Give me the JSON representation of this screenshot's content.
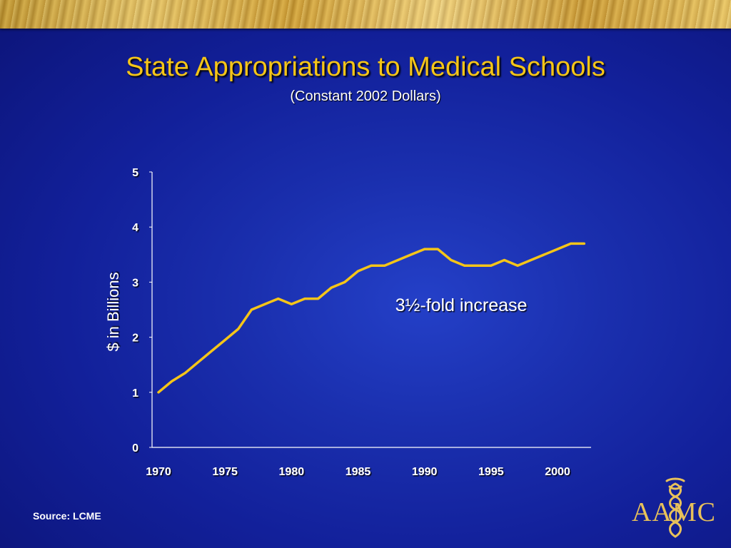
{
  "slide": {
    "title": "State Appropriations to Medical Schools",
    "subtitle": "(Constant 2002 Dollars)",
    "source": "Source: LCME",
    "logo_text": "AAMC"
  },
  "colors": {
    "background": "#1a2fae",
    "title": "#f5c518",
    "series_line": "#f5c518",
    "axis": "#ffffff",
    "band": "#d4b256"
  },
  "chart_data": {
    "type": "line",
    "ylabel": "$ in Billions",
    "xlabel": "",
    "ylim": [
      0,
      5
    ],
    "xlim": [
      1970,
      2002
    ],
    "yticks": [
      0,
      1,
      2,
      3,
      4,
      5
    ],
    "xticks": [
      1970,
      1975,
      1980,
      1985,
      1990,
      1995,
      2000
    ],
    "grid": false,
    "annotation": "3½-fold increase",
    "series": [
      {
        "x": [
          1970,
          1971,
          1972,
          1973,
          1974,
          1975,
          1976,
          1977,
          1978,
          1979,
          1980,
          1981,
          1982,
          1983,
          1984,
          1985,
          1986,
          1987,
          1988,
          1989,
          1990,
          1991,
          1992,
          1993,
          1994,
          1995,
          1996,
          1997,
          1998,
          1999,
          2000,
          2001,
          2002
        ],
        "values": [
          1.0,
          1.2,
          1.35,
          1.55,
          1.75,
          1.95,
          2.15,
          2.5,
          2.6,
          2.7,
          2.6,
          2.7,
          2.7,
          2.9,
          3.0,
          3.2,
          3.3,
          3.3,
          3.4,
          3.5,
          3.6,
          3.6,
          3.4,
          3.3,
          3.3,
          3.3,
          3.4,
          3.3,
          3.4,
          3.5,
          3.6,
          3.7,
          3.7
        ]
      }
    ]
  }
}
